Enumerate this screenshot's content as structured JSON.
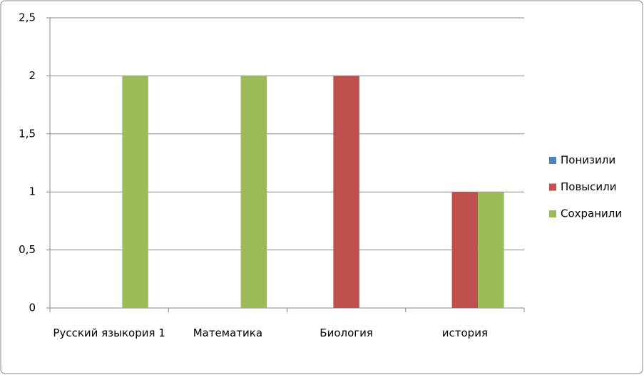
{
  "chart_data": {
    "type": "bar",
    "categories": [
      "Русский языкория 1",
      "Математика",
      "Биология",
      "история"
    ],
    "series": [
      {
        "name": "Понизили",
        "color": "#4f81bd",
        "values": [
          0,
          0,
          0,
          0
        ]
      },
      {
        "name": "Повысили",
        "color": "#c0504d",
        "values": [
          0,
          0,
          2,
          1
        ]
      },
      {
        "name": "Сохранили",
        "color": "#9bbb59",
        "values": [
          2,
          2,
          0,
          1
        ]
      }
    ],
    "ylim": [
      0,
      2.5
    ],
    "yticks": [
      0,
      {
        "value": 0.5,
        "label": "0,5"
      },
      1,
      {
        "value": 1.5,
        "label": "1,5"
      },
      2,
      {
        "value": 2.5,
        "label": "2,5"
      }
    ],
    "grid": true,
    "legend": "right"
  }
}
